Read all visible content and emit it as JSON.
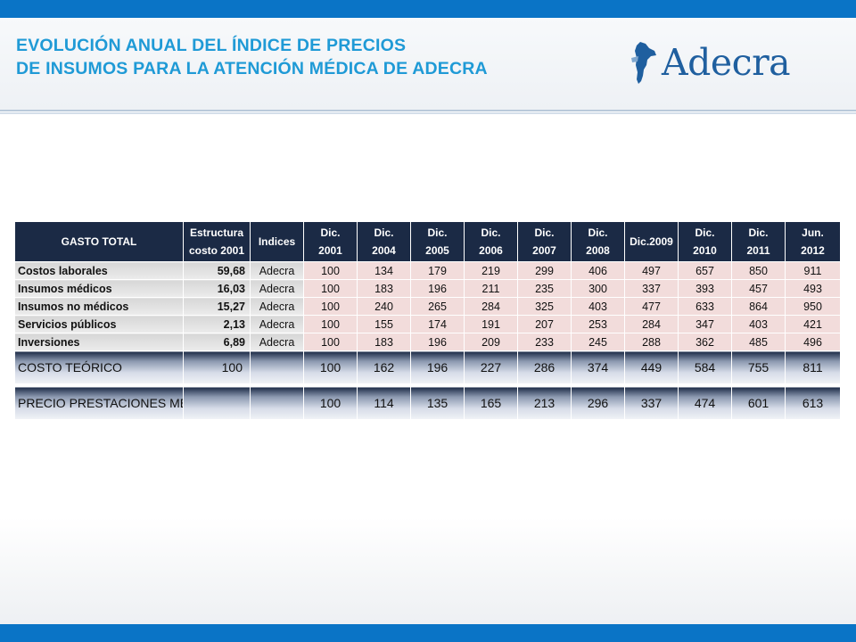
{
  "header": {
    "title_line1": "EVOLUCIÓN ANUAL DEL ÍNDICE DE PRECIOS",
    "title_line2": "DE INSUMOS PARA LA ATENCIÓN MÉDICA DE ADECRA",
    "logo_text": "Adecra",
    "logo_icon": "argentina-map-icon"
  },
  "colors": {
    "accent_bar": "#0a74c6",
    "title": "#1f9ad6",
    "header_row": "#1b2a45",
    "value_cells": "#f2dcdb",
    "name_cells": "#e0e0e0"
  },
  "table": {
    "columns": [
      {
        "line1": "GASTO TOTAL",
        "line2": ""
      },
      {
        "line1": "Estructura",
        "line2": "costo 2001"
      },
      {
        "line1": "Indices",
        "line2": ""
      },
      {
        "line1": "Dic.",
        "line2": "2001"
      },
      {
        "line1": "Dic.",
        "line2": "2004"
      },
      {
        "line1": "Dic.",
        "line2": "2005"
      },
      {
        "line1": "Dic.",
        "line2": "2006"
      },
      {
        "line1": "Dic.",
        "line2": "2007"
      },
      {
        "line1": "Dic.",
        "line2": "2008"
      },
      {
        "line1": "Dic.2009",
        "line2": ""
      },
      {
        "line1": "Dic.",
        "line2": "2010"
      },
      {
        "line1": "Dic.",
        "line2": "2011"
      },
      {
        "line1": "Jun.",
        "line2": "2012"
      }
    ],
    "rows": [
      {
        "name": "Costos laborales",
        "weight": "59,68",
        "index": "Adecra",
        "values": [
          "100",
          "134",
          "179",
          "219",
          "299",
          "406",
          "497",
          "657",
          "850",
          "911"
        ]
      },
      {
        "name": "Insumos médicos",
        "weight": "16,03",
        "index": "Adecra",
        "values": [
          "100",
          "183",
          "196",
          "211",
          "235",
          "300",
          "337",
          "393",
          "457",
          "493"
        ]
      },
      {
        "name": "Insumos no médicos",
        "weight": "15,27",
        "index": "Adecra",
        "values": [
          "100",
          "240",
          "265",
          "284",
          "325",
          "403",
          "477",
          "633",
          "864",
          "950"
        ]
      },
      {
        "name": "Servicios públicos",
        "weight": "2,13",
        "index": "Adecra",
        "values": [
          "100",
          "155",
          "174",
          "191",
          "207",
          "253",
          "284",
          "347",
          "403",
          "421"
        ]
      },
      {
        "name": "Inversiones",
        "weight": "6,89",
        "index": "Adecra",
        "values": [
          "100",
          "183",
          "196",
          "209",
          "233",
          "245",
          "288",
          "362",
          "485",
          "496"
        ]
      }
    ],
    "totals": [
      {
        "name": "COSTO TEÓRICO",
        "weight": "100",
        "index": "",
        "values": [
          "100",
          "162",
          "196",
          "227",
          "286",
          "374",
          "449",
          "584",
          "755",
          "811"
        ]
      },
      {
        "name": "PRECIO PRESTACIONES MÉDICAS",
        "weight": "",
        "index": "",
        "values": [
          "100",
          "114",
          "135",
          "165",
          "213",
          "296",
          "337",
          "474",
          "601",
          "613"
        ]
      }
    ]
  }
}
